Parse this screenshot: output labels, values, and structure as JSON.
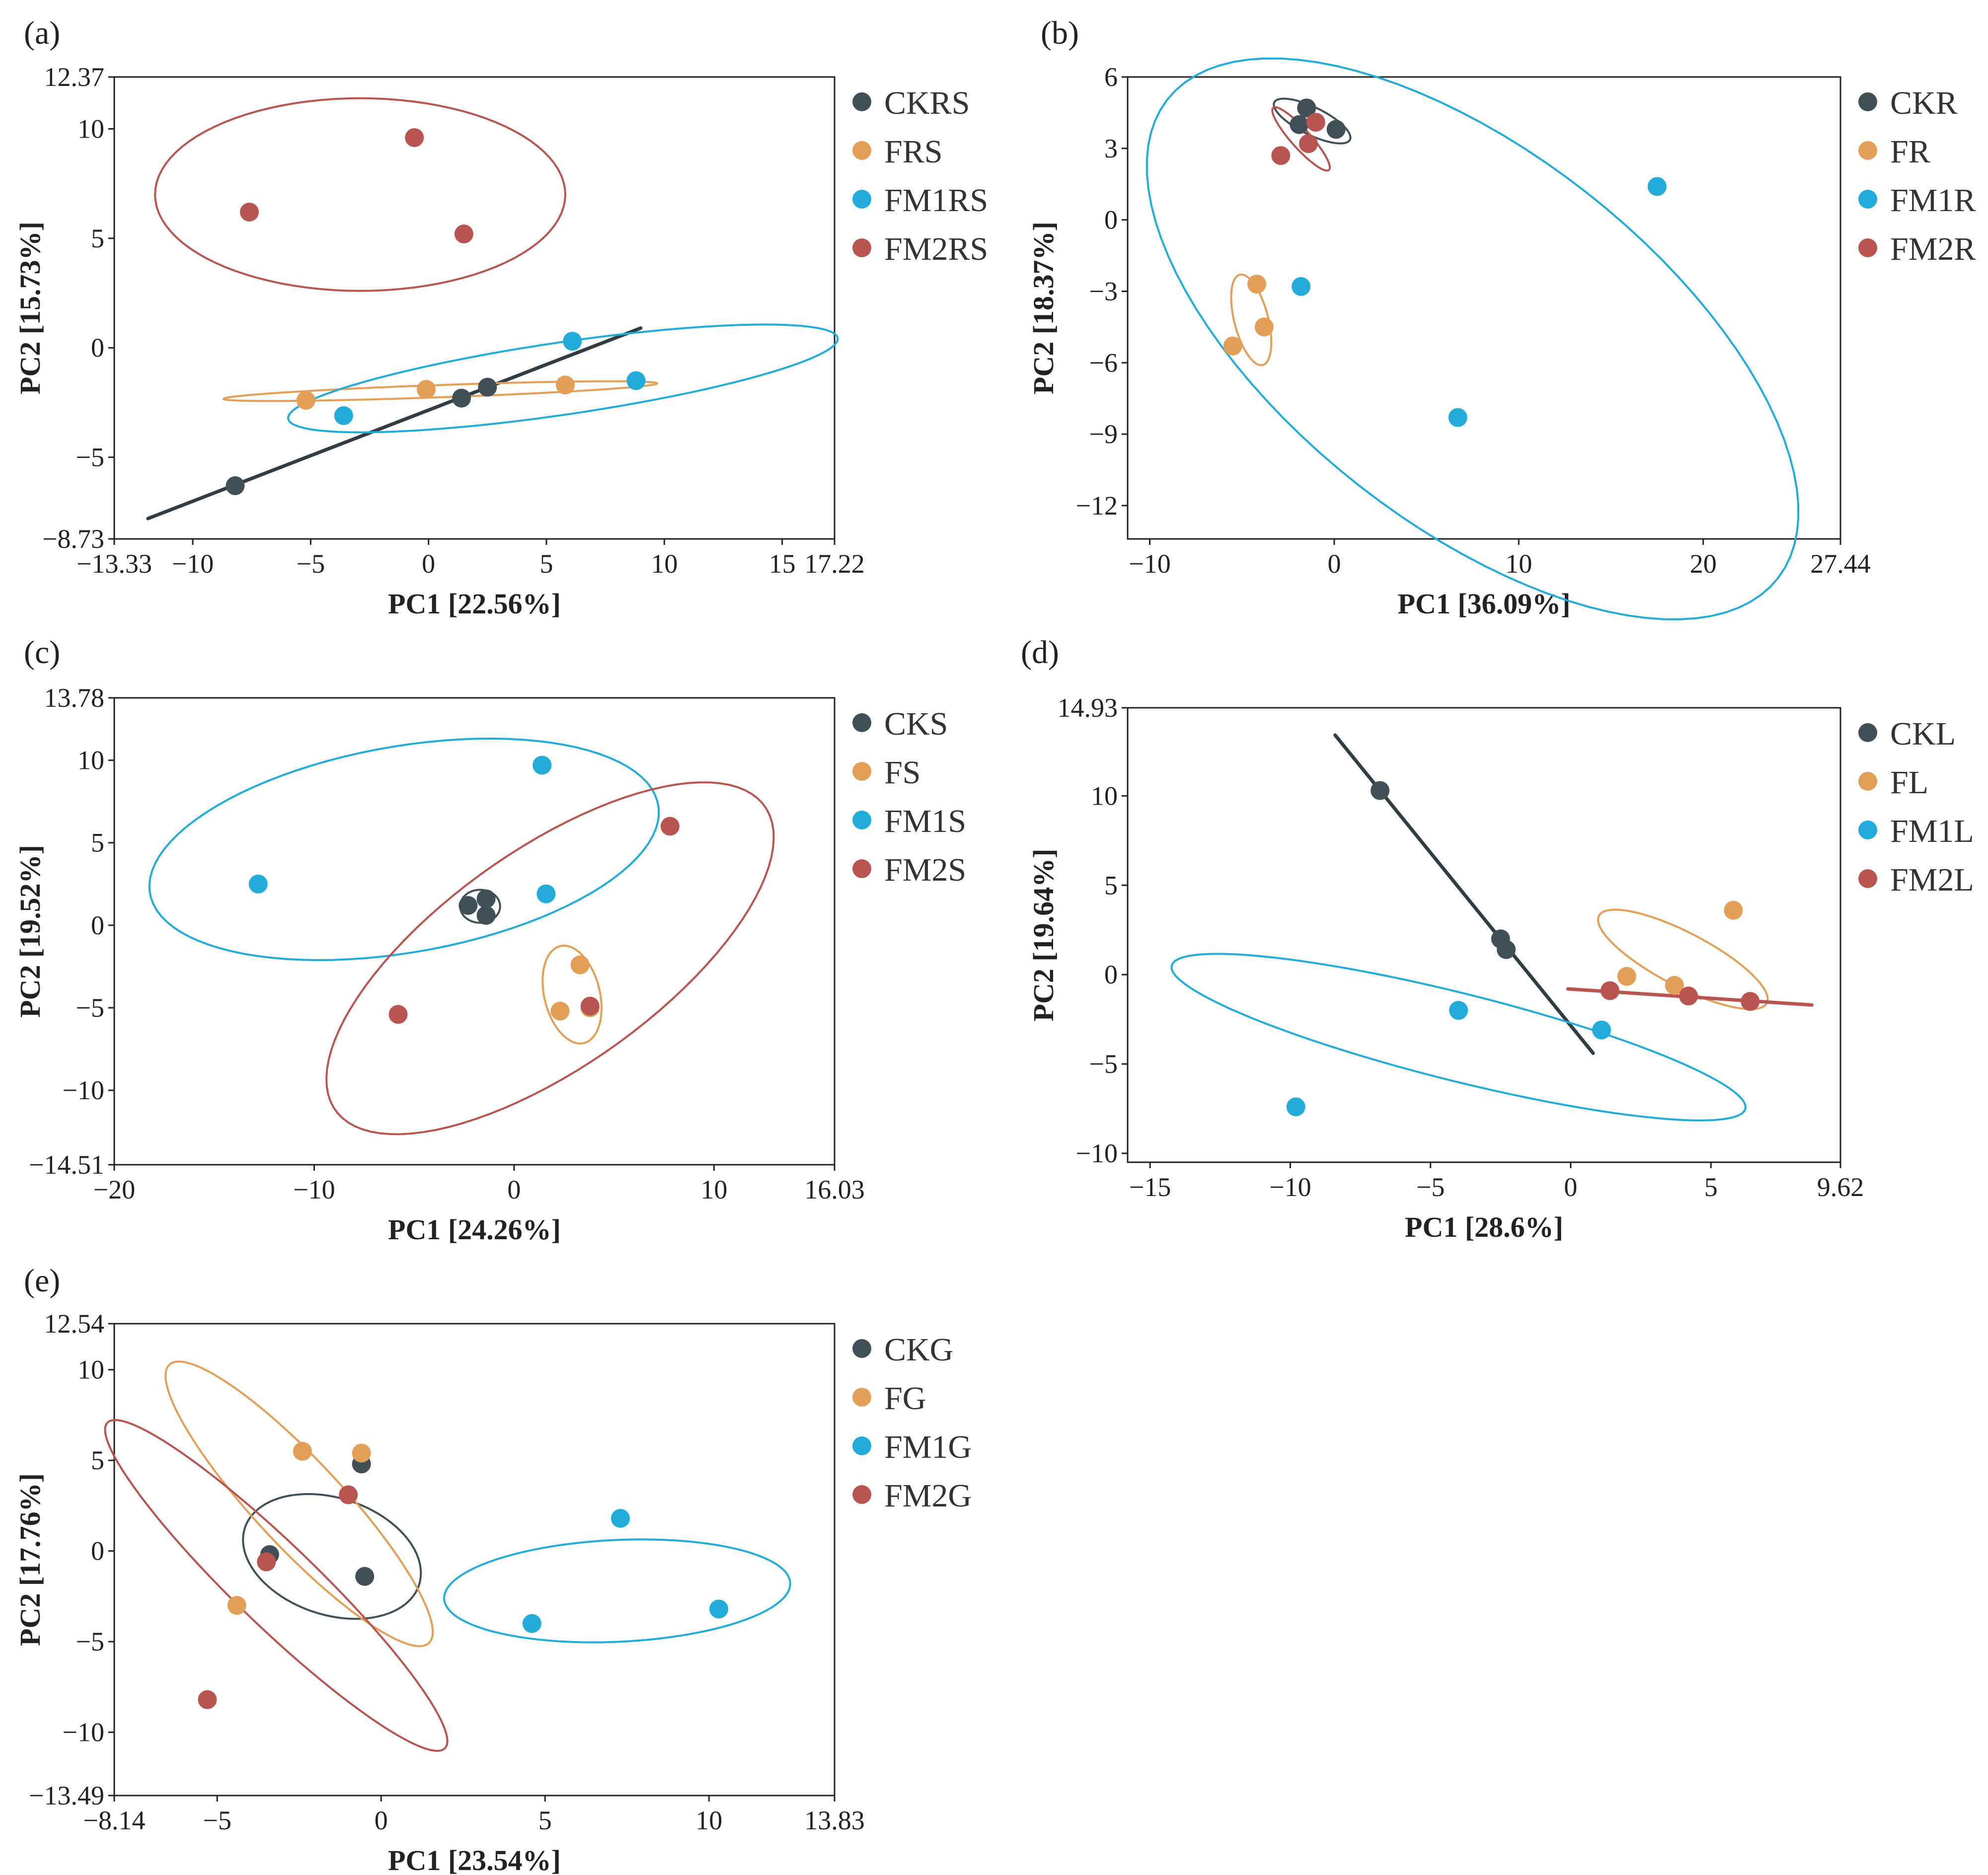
{
  "colors": {
    "CK": "#414f57",
    "F": "#e39f58",
    "FM1": "#23acd9",
    "FM2": "#b95550",
    "line_CK": "#2f3d44"
  },
  "chart_data": [
    {
      "type": "scatter",
      "panel_label": "(a)",
      "xlabel": "PC1 [22.56%]",
      "ylabel": "PC2 [15.73%]",
      "xlim": [
        -13.33,
        17.22
      ],
      "ylim": [
        -8.73,
        12.37
      ],
      "xticks": [
        {
          "v": -13.33,
          "t": "−13.33"
        },
        {
          "v": -10,
          "t": "−10"
        },
        {
          "v": -5,
          "t": "−5"
        },
        {
          "v": 0,
          "t": "0"
        },
        {
          "v": 5,
          "t": "5"
        },
        {
          "v": 10,
          "t": "10"
        },
        {
          "v": 15,
          "t": "15"
        },
        {
          "v": 17.22,
          "t": "17.22"
        }
      ],
      "yticks": [
        {
          "v": 12.37,
          "t": "12.37"
        },
        {
          "v": 10,
          "t": "10"
        },
        {
          "v": 5,
          "t": "5"
        },
        {
          "v": 0,
          "t": "0"
        },
        {
          "v": -5,
          "t": "−5"
        },
        {
          "v": -8.73,
          "t": "−8.73"
        }
      ],
      "series": [
        {
          "name": "CKRS",
          "group": "CK",
          "points": [
            [
              -8.2,
              -6.3
            ],
            [
              1.4,
              -2.3
            ],
            [
              2.5,
              -1.8
            ]
          ]
        },
        {
          "name": "FRS",
          "group": "F",
          "points": [
            [
              -5.2,
              -2.4
            ],
            [
              -0.1,
              -1.9
            ],
            [
              5.8,
              -1.7
            ]
          ]
        },
        {
          "name": "FM1RS",
          "group": "FM1",
          "points": [
            [
              -3.6,
              -3.1
            ],
            [
              6.1,
              0.3
            ],
            [
              8.8,
              -1.5
            ]
          ]
        },
        {
          "name": "FM2RS",
          "group": "FM2",
          "points": [
            [
              -7.6,
              6.2
            ],
            [
              -0.6,
              9.6
            ],
            [
              1.5,
              5.2
            ]
          ]
        }
      ],
      "ellipses": [
        {
          "group": "CK",
          "line": [
            [
              -11.9,
              -7.8
            ],
            [
              9.0,
              0.9
            ]
          ]
        },
        {
          "group": "F",
          "center": [
            0.5,
            -1.98
          ],
          "rx": 9.2,
          "ry": 0.28,
          "angle": 2.2
        },
        {
          "group": "FM1",
          "center": [
            5.7,
            -1.4
          ],
          "rx": 11.8,
          "ry": 1.65,
          "angle": 9
        },
        {
          "group": "FM2",
          "center": [
            -2.9,
            7.0
          ],
          "rx": 8.7,
          "ry": 4.4,
          "angle": 0
        }
      ]
    },
    {
      "type": "scatter",
      "panel_label": "(b)",
      "xlabel": "PC1 [36.09%]",
      "ylabel": "PC2 [18.37%]",
      "xlim": [
        -11.2,
        27.44
      ],
      "ylim": [
        -13.4,
        6.0
      ],
      "xticks": [
        {
          "v": -10,
          "t": "−10"
        },
        {
          "v": 0,
          "t": "0"
        },
        {
          "v": 10,
          "t": "10"
        },
        {
          "v": 20,
          "t": "20"
        },
        {
          "v": 27.44,
          "t": "27.44"
        }
      ],
      "yticks": [
        {
          "v": 6,
          "t": "6"
        },
        {
          "v": 3,
          "t": "3"
        },
        {
          "v": 0,
          "t": "0"
        },
        {
          "v": -3,
          "t": "−3"
        },
        {
          "v": -6,
          "t": "−6"
        },
        {
          "v": -9,
          "t": "−9"
        },
        {
          "v": -12,
          "t": "−12"
        }
      ],
      "series": [
        {
          "name": "CKR",
          "group": "CK",
          "points": [
            [
              -1.9,
              4.0
            ],
            [
              -1.5,
              4.7
            ],
            [
              0.1,
              3.8
            ]
          ]
        },
        {
          "name": "FR",
          "group": "F",
          "points": [
            [
              -5.5,
              -5.3
            ],
            [
              -4.2,
              -2.7
            ],
            [
              -3.8,
              -4.5
            ]
          ]
        },
        {
          "name": "FM1R",
          "group": "FM1",
          "points": [
            [
              -1.8,
              -2.8
            ],
            [
              6.7,
              -8.3
            ],
            [
              17.5,
              1.4
            ]
          ]
        },
        {
          "name": "FM2R",
          "group": "FM2",
          "points": [
            [
              -2.9,
              2.7
            ],
            [
              -1.0,
              4.1
            ],
            [
              -1.4,
              3.2
            ]
          ]
        }
      ],
      "ellipses": [
        {
          "group": "CK",
          "center": [
            -1.2,
            4.15
          ],
          "rx": 2.2,
          "ry": 0.6,
          "angle": -20
        },
        {
          "group": "F",
          "center": [
            -4.5,
            -4.2
          ],
          "rx": 2.0,
          "ry": 0.9,
          "angle": -70
        },
        {
          "group": "FM1",
          "center": [
            7.5,
            -5.0
          ],
          "rx": 19.5,
          "ry": 8.4,
          "angle": -28
        },
        {
          "group": "FM2",
          "center": [
            -1.8,
            3.4
          ],
          "rx": 2.0,
          "ry": 0.45,
          "angle": -40
        }
      ]
    },
    {
      "type": "scatter",
      "panel_label": "(c)",
      "xlabel": "PC1 [24.26%]",
      "ylabel": "PC2 [19.52%]",
      "xlim": [
        -20,
        16.03
      ],
      "ylim": [
        -14.51,
        13.78
      ],
      "xticks": [
        {
          "v": -20,
          "t": "−20"
        },
        {
          "v": -10,
          "t": "−10"
        },
        {
          "v": 0,
          "t": "0"
        },
        {
          "v": 10,
          "t": "10"
        },
        {
          "v": 16.03,
          "t": "16.03"
        }
      ],
      "yticks": [
        {
          "v": 13.78,
          "t": "13.78"
        },
        {
          "v": 10,
          "t": "10"
        },
        {
          "v": 5,
          "t": "5"
        },
        {
          "v": 0,
          "t": "0"
        },
        {
          "v": -5,
          "t": "−5"
        },
        {
          "v": -10,
          "t": "−10"
        },
        {
          "v": -14.51,
          "t": "−14.51"
        }
      ],
      "series": [
        {
          "name": "CKS",
          "group": "CK",
          "points": [
            [
              -2.3,
              1.2
            ],
            [
              -1.4,
              1.6
            ],
            [
              -1.4,
              0.6
            ]
          ]
        },
        {
          "name": "FS",
          "group": "F",
          "points": [
            [
              2.3,
              -5.2
            ],
            [
              3.3,
              -2.4
            ],
            [
              3.8,
              -5.0
            ]
          ]
        },
        {
          "name": "FM1S",
          "group": "FM1",
          "points": [
            [
              -12.8,
              2.5
            ],
            [
              1.4,
              9.7
            ],
            [
              1.6,
              1.9
            ]
          ]
        },
        {
          "name": "FM2S",
          "group": "FM2",
          "points": [
            [
              -5.8,
              -5.4
            ],
            [
              3.8,
              -4.9
            ],
            [
              7.8,
              6.0
            ]
          ]
        }
      ],
      "ellipses": [
        {
          "group": "CK",
          "center": [
            -1.7,
            1.15
          ],
          "rx": 1.0,
          "ry": 1.0,
          "angle": 0
        },
        {
          "group": "F",
          "center": [
            2.9,
            -4.2
          ],
          "rx": 3.0,
          "ry": 1.4,
          "angle": -80
        },
        {
          "group": "FM1",
          "center": [
            -5.5,
            4.6
          ],
          "rx": 13.0,
          "ry": 6.2,
          "angle": 13
        },
        {
          "group": "FM2",
          "center": [
            1.8,
            -2.0
          ],
          "rx": 14.2,
          "ry": 6.1,
          "angle": 43
        }
      ]
    },
    {
      "type": "scatter",
      "panel_label": "(d)",
      "xlabel": "PC1 [28.6%]",
      "ylabel": "PC2 [19.64%]",
      "xlim": [
        -15.8,
        9.62
      ],
      "ylim": [
        -10.5,
        14.93
      ],
      "xticks": [
        {
          "v": -15,
          "t": "−15"
        },
        {
          "v": -10,
          "t": "−10"
        },
        {
          "v": -5,
          "t": "−5"
        },
        {
          "v": 0,
          "t": "0"
        },
        {
          "v": 5,
          "t": "5"
        },
        {
          "v": 9.62,
          "t": "9.62"
        }
      ],
      "yticks": [
        {
          "v": 14.93,
          "t": "14.93"
        },
        {
          "v": 10,
          "t": "10"
        },
        {
          "v": 5,
          "t": "5"
        },
        {
          "v": 0,
          "t": "0"
        },
        {
          "v": -5,
          "t": "−5"
        },
        {
          "v": -10,
          "t": "−10"
        }
      ],
      "series": [
        {
          "name": "CKL",
          "group": "CK",
          "points": [
            [
              -6.8,
              10.3
            ],
            [
              -2.5,
              2.0
            ],
            [
              -2.3,
              1.4
            ]
          ]
        },
        {
          "name": "FL",
          "group": "F",
          "points": [
            [
              2.0,
              -0.1
            ],
            [
              3.7,
              -0.6
            ],
            [
              5.8,
              3.6
            ]
          ]
        },
        {
          "name": "FM1L",
          "group": "FM1",
          "points": [
            [
              -9.8,
              -7.4
            ],
            [
              -4.0,
              -2.0
            ],
            [
              1.1,
              -3.1
            ]
          ]
        },
        {
          "name": "FM2L",
          "group": "FM2",
          "points": [
            [
              1.4,
              -0.9
            ],
            [
              4.2,
              -1.2
            ],
            [
              6.4,
              -1.5
            ]
          ]
        }
      ],
      "ellipses": [
        {
          "group": "CK",
          "line": [
            [
              -8.4,
              13.4
            ],
            [
              0.8,
              -4.4
            ]
          ]
        },
        {
          "group": "F",
          "center": [
            4.0,
            0.85
          ],
          "rx": 3.9,
          "ry": 1.3,
          "angle": -42
        },
        {
          "group": "FM1",
          "center": [
            -4.0,
            -3.5
          ],
          "rx": 11.0,
          "ry": 2.35,
          "angle": -22
        },
        {
          "group": "FM2",
          "line": [
            [
              -0.1,
              -0.8
            ],
            [
              8.6,
              -1.7
            ]
          ]
        }
      ]
    },
    {
      "type": "scatter",
      "panel_label": "(e)",
      "xlabel": "PC1 [23.54%]",
      "ylabel": "PC2 [17.76%]",
      "xlim": [
        -8.14,
        13.83
      ],
      "ylim": [
        -13.49,
        12.54
      ],
      "xticks": [
        {
          "v": -8.14,
          "t": "−8.14"
        },
        {
          "v": -5,
          "t": "−5"
        },
        {
          "v": 0,
          "t": "0"
        },
        {
          "v": 5,
          "t": "5"
        },
        {
          "v": 10,
          "t": "10"
        },
        {
          "v": 13.83,
          "t": "13.83"
        }
      ],
      "yticks": [
        {
          "v": 12.54,
          "t": "12.54"
        },
        {
          "v": 10,
          "t": "10"
        },
        {
          "v": 5,
          "t": "5"
        },
        {
          "v": 0,
          "t": "0"
        },
        {
          "v": -5,
          "t": "−5"
        },
        {
          "v": -10,
          "t": "−10"
        },
        {
          "v": -13.49,
          "t": "−13.49"
        }
      ],
      "series": [
        {
          "name": "CKG",
          "group": "CK",
          "points": [
            [
              -3.4,
              -0.2
            ],
            [
              -0.6,
              4.8
            ],
            [
              -0.5,
              -1.4
            ]
          ]
        },
        {
          "name": "FG",
          "group": "F",
          "points": [
            [
              -4.4,
              -3.0
            ],
            [
              -2.4,
              5.5
            ],
            [
              -0.6,
              5.4
            ]
          ]
        },
        {
          "name": "FM1G",
          "group": "FM1",
          "points": [
            [
              4.6,
              -4.0
            ],
            [
              7.3,
              1.8
            ],
            [
              10.3,
              -3.2
            ]
          ]
        },
        {
          "name": "FM2G",
          "group": "FM2",
          "points": [
            [
              -5.3,
              -8.2
            ],
            [
              -3.5,
              -0.6
            ],
            [
              -1.0,
              3.1
            ]
          ]
        }
      ],
      "ellipses": [
        {
          "group": "CK",
          "center": [
            -1.5,
            -0.3
          ],
          "rx": 3.6,
          "ry": 2.5,
          "angle": -66
        },
        {
          "group": "F",
          "center": [
            -2.5,
            2.6
          ],
          "rx": 8.7,
          "ry": 1.6,
          "angle": -64
        },
        {
          "group": "FM1",
          "center": [
            7.2,
            -2.2
          ],
          "rx": 5.3,
          "ry": 2.8,
          "angle": 6
        },
        {
          "group": "FM2",
          "center": [
            -3.2,
            -1.9
          ],
          "rx": 10.4,
          "ry": 1.55,
          "angle": -61
        }
      ]
    }
  ]
}
